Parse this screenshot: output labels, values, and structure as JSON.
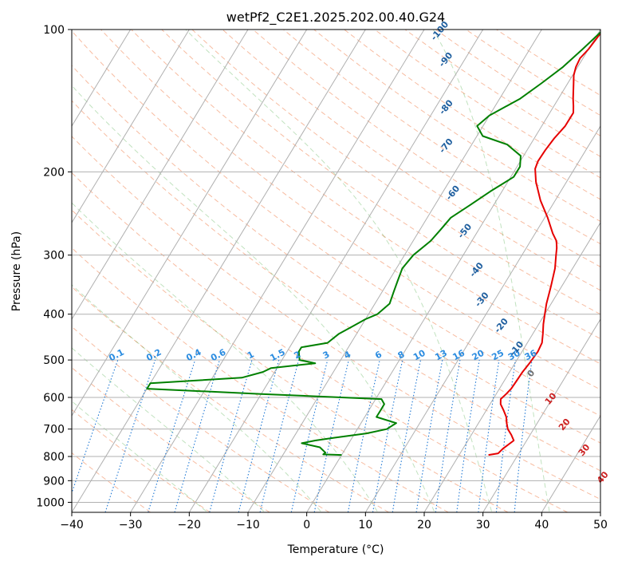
{
  "chart_data": {
    "type": "line",
    "title": "wetPf2_C2E1.2025.202.00.40.G24",
    "xlabel": "Temperature (°C)",
    "ylabel": "Pressure (hPa)",
    "xlim": [
      -40,
      50
    ],
    "ylim": [
      1050,
      100
    ],
    "y_scale": "log",
    "grid": true,
    "x_ticks": [
      -40,
      -30,
      -20,
      -10,
      0,
      10,
      20,
      30,
      40,
      50
    ],
    "y_ticks": [
      100,
      200,
      300,
      400,
      500,
      600,
      700,
      800,
      900,
      1000
    ],
    "series": [
      {
        "role": "temperature",
        "color": "#e60000",
        "points": [
          [
            794,
            25.0
          ],
          [
            788,
            26.5
          ],
          [
            770,
            26.8
          ],
          [
            740,
            27.8
          ],
          [
            720,
            26.8
          ],
          [
            700,
            25.6
          ],
          [
            680,
            24.8
          ],
          [
            660,
            24.1
          ],
          [
            640,
            23.0
          ],
          [
            620,
            21.8
          ],
          [
            605,
            21.3
          ],
          [
            590,
            21.7
          ],
          [
            575,
            22.0
          ],
          [
            555,
            22.1
          ],
          [
            530,
            22.2
          ],
          [
            505,
            22.5
          ],
          [
            480,
            22.7
          ],
          [
            460,
            22.5
          ],
          [
            440,
            21.7
          ],
          [
            420,
            20.8
          ],
          [
            400,
            20.0
          ],
          [
            380,
            19.2
          ],
          [
            350,
            18.2
          ],
          [
            320,
            17.0
          ],
          [
            300,
            15.8
          ],
          [
            290,
            15.2
          ],
          [
            280,
            14.4
          ],
          [
            270,
            13.0
          ],
          [
            250,
            10.5
          ],
          [
            230,
            7.5
          ],
          [
            210,
            4.8
          ],
          [
            197,
            3.3
          ],
          [
            190,
            3.0
          ],
          [
            180,
            3.1
          ],
          [
            170,
            3.4
          ],
          [
            160,
            4.0
          ],
          [
            150,
            4.0
          ],
          [
            145,
            3.3
          ],
          [
            140,
            2.5
          ],
          [
            130,
            1.0
          ],
          [
            125,
            0.2
          ],
          [
            120,
            -0.3
          ],
          [
            115,
            -0.5
          ],
          [
            110,
            0.0
          ],
          [
            100,
            0.5
          ]
        ]
      },
      {
        "role": "dewpoint",
        "color": "#008000",
        "points": [
          [
            794,
            0.0
          ],
          [
            792,
            -3.2
          ],
          [
            785,
            -3.0
          ],
          [
            765,
            -4.5
          ],
          [
            750,
            -8.0
          ],
          [
            740,
            -6.0
          ],
          [
            730,
            -3.0
          ],
          [
            715,
            2.0
          ],
          [
            700,
            5.0
          ],
          [
            680,
            6.0
          ],
          [
            660,
            2.0
          ],
          [
            640,
            2.0
          ],
          [
            620,
            2.0
          ],
          [
            605,
            1.0
          ],
          [
            590,
            -20.0
          ],
          [
            575,
            -40.0
          ],
          [
            560,
            -40.0
          ],
          [
            545,
            -25.0
          ],
          [
            530,
            -22.0
          ],
          [
            520,
            -21.0
          ],
          [
            508,
            -14.0
          ],
          [
            500,
            -17.0
          ],
          [
            480,
            -18.0
          ],
          [
            470,
            -18.0
          ],
          [
            460,
            -14.0
          ],
          [
            440,
            -13.0
          ],
          [
            425,
            -11.5
          ],
          [
            410,
            -10.0
          ],
          [
            400,
            -8.5
          ],
          [
            380,
            -7.5
          ],
          [
            360,
            -8.0
          ],
          [
            340,
            -8.5
          ],
          [
            320,
            -9.0
          ],
          [
            300,
            -8.5
          ],
          [
            280,
            -7.0
          ],
          [
            265,
            -6.5
          ],
          [
            250,
            -6.0
          ],
          [
            235,
            -4.0
          ],
          [
            220,
            -2.0
          ],
          [
            205,
            0.5
          ],
          [
            195,
            0.5
          ],
          [
            185,
            -0.5
          ],
          [
            175,
            -4.0
          ],
          [
            168,
            -9.0
          ],
          [
            160,
            -11.0
          ],
          [
            152,
            -10.0
          ],
          [
            140,
            -6.5
          ],
          [
            130,
            -4.5
          ],
          [
            120,
            -2.5
          ],
          [
            110,
            -1.0
          ],
          [
            100,
            0.5
          ]
        ]
      }
    ],
    "dry_adiabats_theta_c": [
      -30,
      -20,
      -10,
      0,
      10,
      20,
      30,
      40,
      50,
      60,
      70,
      80,
      90,
      100,
      110,
      120,
      130,
      140,
      150,
      160,
      170,
      180,
      190,
      200,
      210,
      220
    ],
    "moist_adiabats_c": [
      -20,
      -10,
      0,
      10,
      20,
      30,
      40
    ],
    "mixing_ratio_lines": {
      "values": [
        0.1,
        0.2,
        0.4,
        0.6,
        1,
        1.5,
        2,
        3,
        4,
        6,
        8,
        10,
        13,
        16,
        20,
        25,
        30,
        36
      ],
      "labels": [
        "0.1",
        "0.2",
        "0.4",
        "0.6",
        "1",
        "1.5",
        "2",
        "3",
        "4",
        "6",
        "8",
        "10",
        "13",
        "16",
        "20",
        "25",
        "30",
        "36"
      ],
      "label_pressure": 500
    },
    "annotations": [
      {
        "text": "-100",
        "x": -27,
        "p": 100,
        "color": "#1f5f9f"
      },
      {
        "text": "-90",
        "x": -23,
        "p": 115,
        "color": "#1f5f9f"
      },
      {
        "text": "-80",
        "x": -18,
        "p": 145,
        "color": "#1f5f9f"
      },
      {
        "text": "-70",
        "x": -14,
        "p": 175,
        "color": "#1f5f9f"
      },
      {
        "text": "-60",
        "x": -8,
        "p": 220,
        "color": "#1f5f9f"
      },
      {
        "text": "-50",
        "x": -2,
        "p": 265,
        "color": "#1f5f9f"
      },
      {
        "text": "-40",
        "x": 4,
        "p": 320,
        "color": "#1f5f9f"
      },
      {
        "text": "-30",
        "x": 8,
        "p": 370,
        "color": "#1f5f9f"
      },
      {
        "text": "-20",
        "x": 14,
        "p": 420,
        "color": "#1f5f9f"
      },
      {
        "text": "-10",
        "x": 19,
        "p": 470,
        "color": "#1f5f9f"
      },
      {
        "text": "0",
        "x": 24,
        "p": 530,
        "color": "#707070"
      },
      {
        "text": "10",
        "x": 30,
        "p": 600,
        "color": "#cc2222"
      },
      {
        "text": "20",
        "x": 35,
        "p": 680,
        "color": "#cc2222"
      },
      {
        "text": "30",
        "x": 41,
        "p": 770,
        "color": "#cc2222"
      },
      {
        "text": "40",
        "x": 47,
        "p": 880,
        "color": "#cc2222"
      }
    ]
  }
}
